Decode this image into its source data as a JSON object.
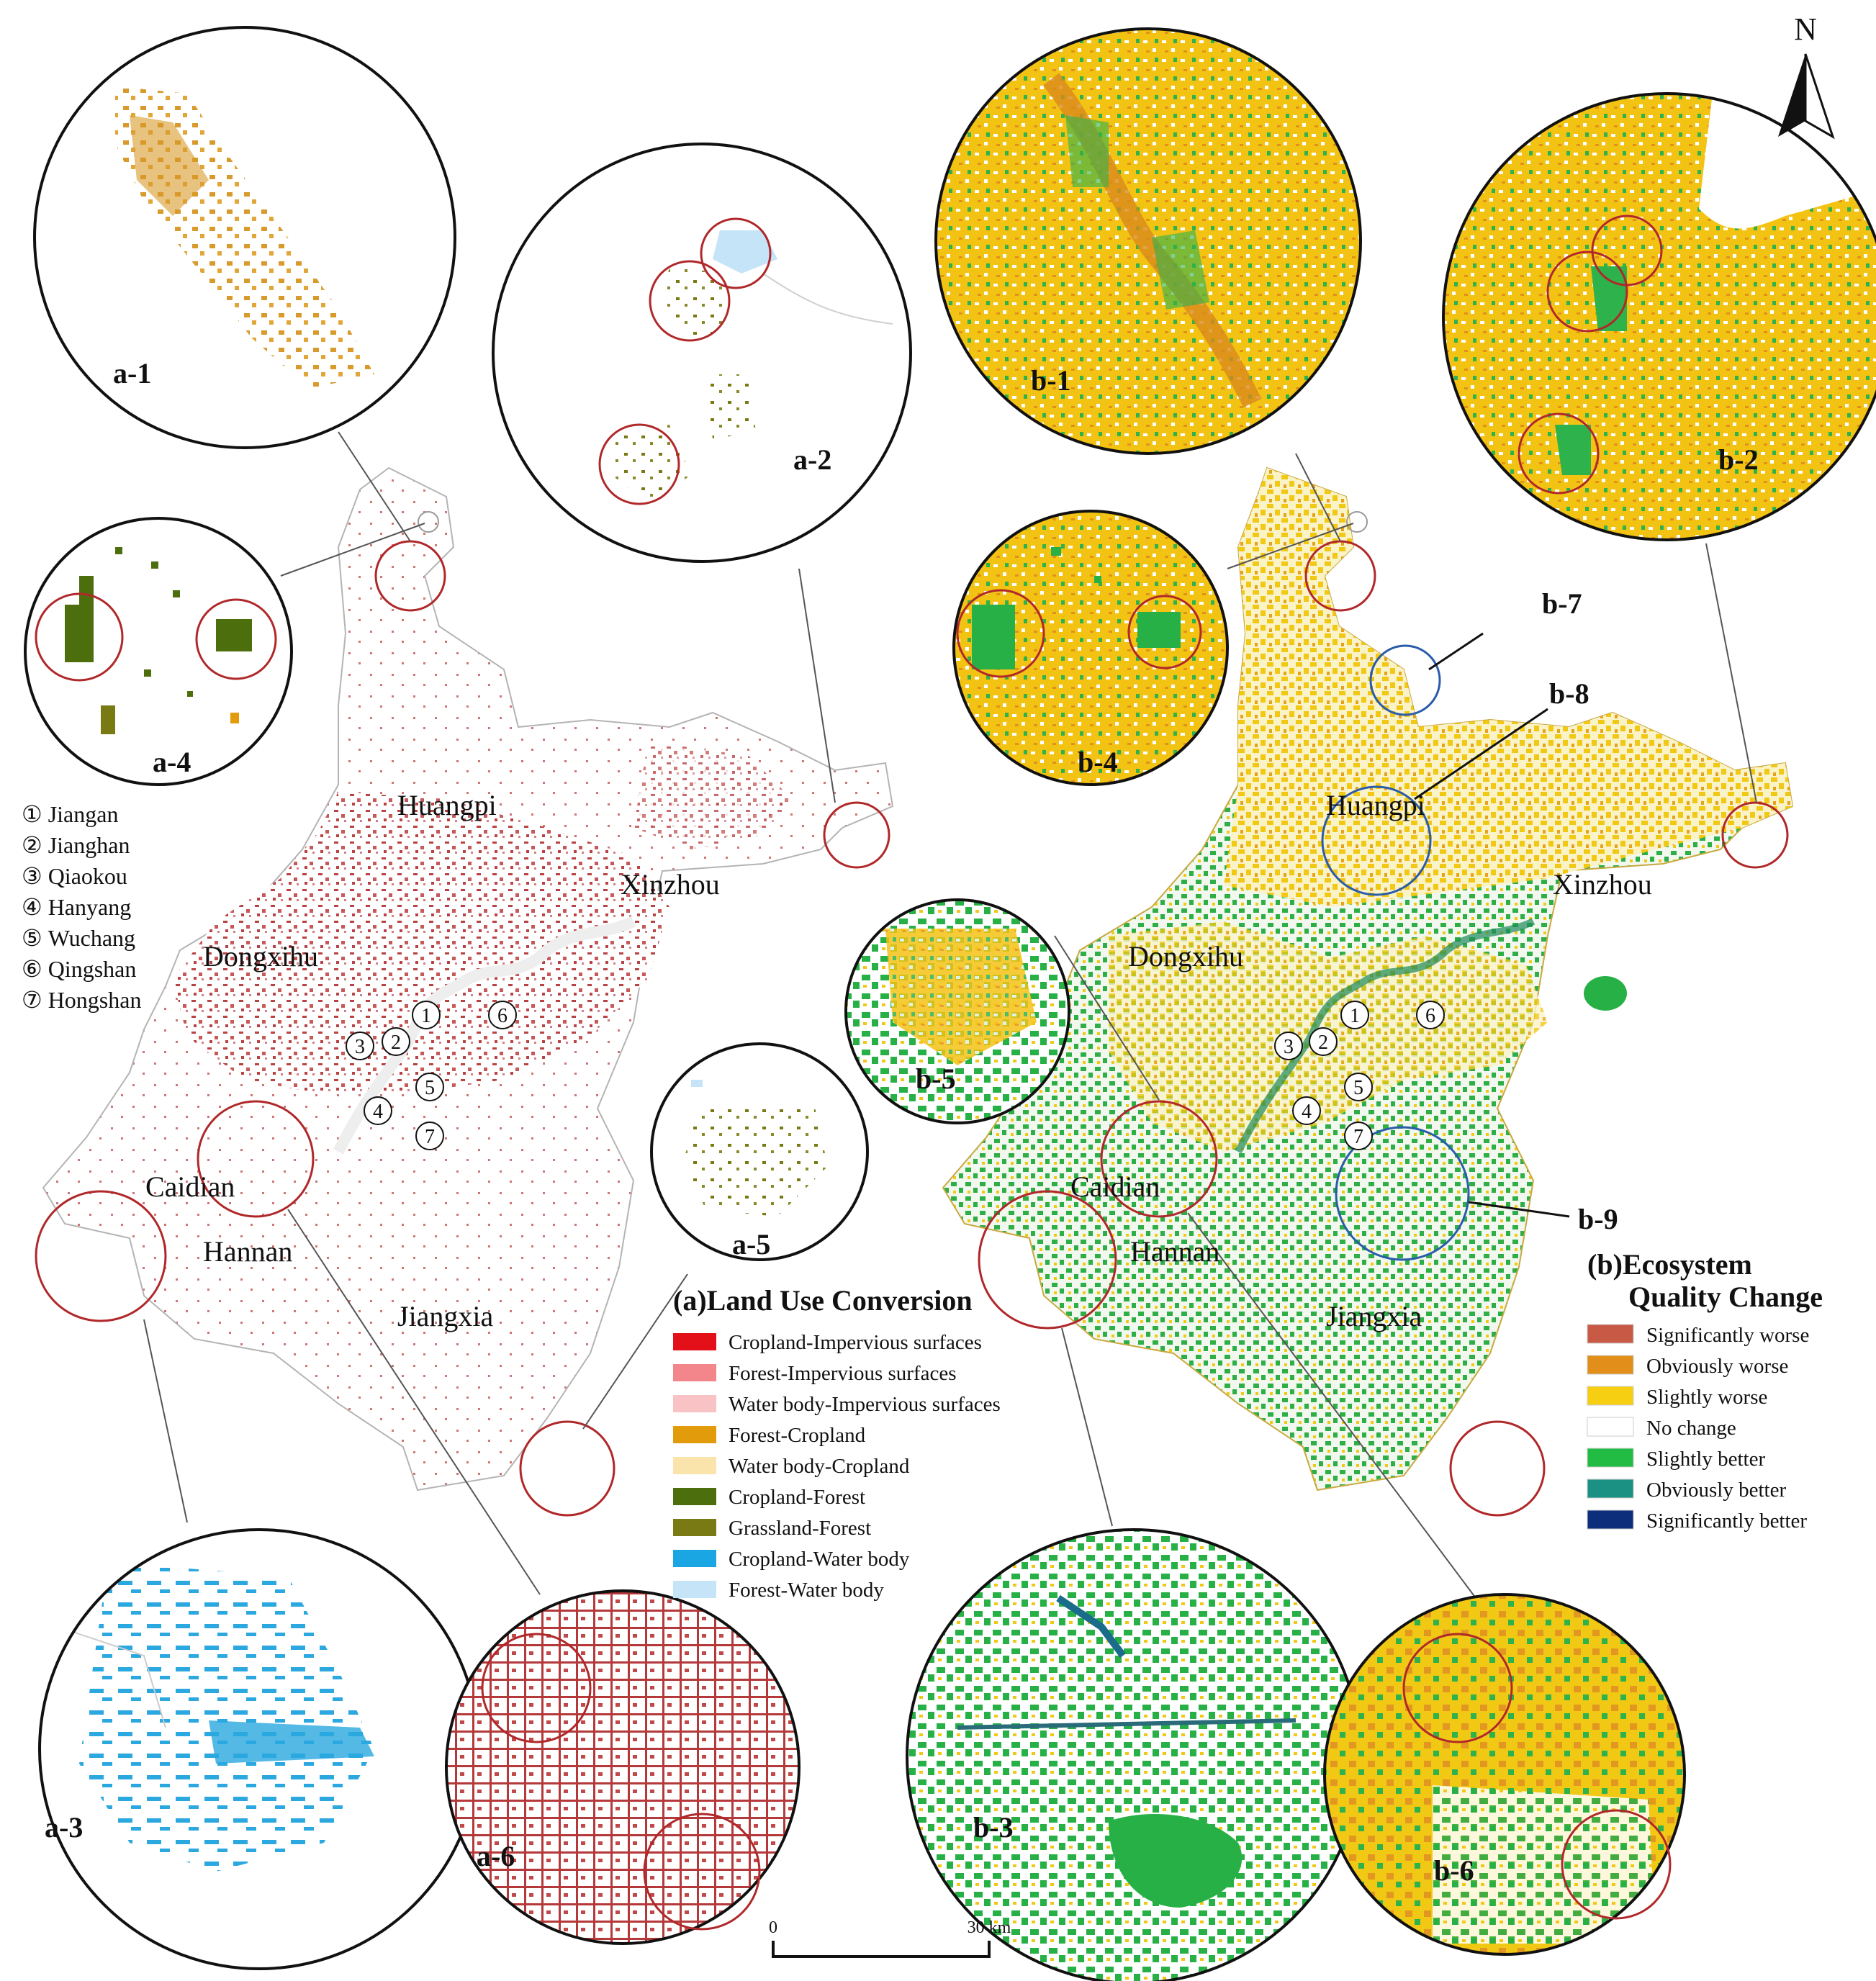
{
  "north": "N",
  "district_list": [
    {
      "symbol": "①",
      "name": "Jiangan"
    },
    {
      "symbol": "②",
      "name": "Jianghan"
    },
    {
      "symbol": "③",
      "name": "Qiaokou"
    },
    {
      "symbol": "④",
      "name": "Hanyang"
    },
    {
      "symbol": "⑤",
      "name": "Wuchang"
    },
    {
      "symbol": "⑥",
      "name": "Qingshan"
    },
    {
      "symbol": "⑦",
      "name": "Hongshan"
    }
  ],
  "district_numbers": [
    "1",
    "2",
    "3",
    "4",
    "5",
    "6",
    "7"
  ],
  "map_labels": {
    "huangpi": "Huangpi",
    "xinzhou": "Xinzhou",
    "dongxihu": "Dongxihu",
    "caidian": "Caidian",
    "hannan": "Hannan",
    "jiangxia": "Jiangxia"
  },
  "zoom_labels_a": {
    "a1": "a-1",
    "a2": "a-2",
    "a3": "a-3",
    "a4": "a-4",
    "a5": "a-5",
    "a6": "a-6"
  },
  "zoom_labels_b": {
    "b1": "b-1",
    "b2": "b-2",
    "b3": "b-3",
    "b4": "b-4",
    "b5": "b-5",
    "b6": "b-6",
    "b7": "b-7",
    "b8": "b-8",
    "b9": "b-9"
  },
  "legend_a": {
    "title": "(a)Land Use Conversion",
    "items": [
      {
        "label": "Cropland-Impervious surfaces",
        "color": "#e3101a"
      },
      {
        "label": "Forest-Impervious surfaces",
        "color": "#f2868a"
      },
      {
        "label": "Water body-Impervious surfaces",
        "color": "#f9c2c4"
      },
      {
        "label": "Forest-Cropland",
        "color": "#e29b0b"
      },
      {
        "label": "Water body-Cropland",
        "color": "#fbe3ac"
      },
      {
        "label": "Cropland-Forest",
        "color": "#4d6e0c"
      },
      {
        "label": "Grassland-Forest",
        "color": "#7a7a14"
      },
      {
        "label": "Cropland-Water body",
        "color": "#1aa5e3"
      },
      {
        "label": "Forest-Water body",
        "color": "#c6e4f8"
      }
    ]
  },
  "legend_b": {
    "title_line1": "(b)Ecosystem",
    "title_line2": "Quality Change",
    "items": [
      {
        "label": "Significantly worse",
        "color": "#c85a45"
      },
      {
        "label": "Obviously worse",
        "color": "#e18f1a"
      },
      {
        "label": "Slightly worse",
        "color": "#f7cf12"
      },
      {
        "label": "No change",
        "color": "#ffffff"
      },
      {
        "label": "Slightly better",
        "color": "#22bb44"
      },
      {
        "label": "Obviously better",
        "color": "#1b9184"
      },
      {
        "label": "Significantly better",
        "color": "#0d2e7a"
      }
    ]
  },
  "scale_bar": {
    "start": "0",
    "end": "30 km"
  },
  "colors": {
    "highlight_red": "#b0282a",
    "highlight_blue": "#2a5caa",
    "map_a_pixels": "#b5393a",
    "map_b_yellow": "#f1c814",
    "map_b_green": "#2dae47"
  }
}
